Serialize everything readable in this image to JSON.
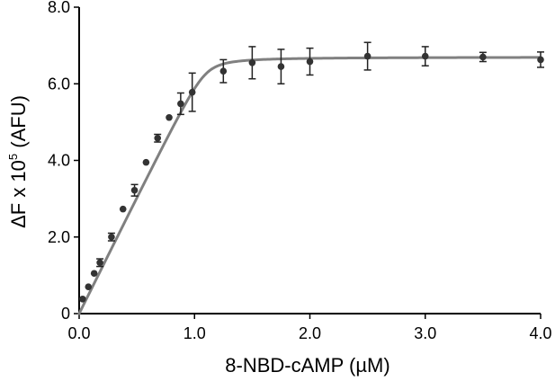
{
  "chart_data": {
    "type": "scatter",
    "xlabel": "8-NBD-cAMP (µM)",
    "ylabel": {
      "prefix": "ΔF x 10",
      "superscript": "5",
      "suffix": " (AFU)"
    },
    "xlim": [
      0,
      4.0
    ],
    "ylim": [
      0,
      8.0
    ],
    "x_ticks": [
      0,
      1.0,
      2.0,
      3.0,
      4.0
    ],
    "x_tick_labels": [
      "0.0",
      "1.0",
      "2.0",
      "3.0",
      "4.0"
    ],
    "y_ticks": [
      0,
      2.0,
      4.0,
      6.0,
      8.0
    ],
    "y_tick_labels": [
      "0",
      "2.0",
      "4.0",
      "6.0",
      "8.0"
    ],
    "grid": false,
    "legend": "none",
    "colors": {
      "points": "#333333",
      "fit_line": "#808080",
      "axis": "#000000"
    },
    "points": [
      {
        "x": 0.03,
        "y": 0.38,
        "err": 0
      },
      {
        "x": 0.08,
        "y": 0.7,
        "err": 0
      },
      {
        "x": 0.13,
        "y": 1.05,
        "err": 0
      },
      {
        "x": 0.18,
        "y": 1.33,
        "err": 0.1
      },
      {
        "x": 0.28,
        "y": 2.0,
        "err": 0.1
      },
      {
        "x": 0.38,
        "y": 2.73,
        "err": 0
      },
      {
        "x": 0.48,
        "y": 3.22,
        "err": 0.15
      },
      {
        "x": 0.58,
        "y": 3.95,
        "err": 0
      },
      {
        "x": 0.68,
        "y": 4.58,
        "err": 0.1
      },
      {
        "x": 0.78,
        "y": 5.12,
        "err": 0
      },
      {
        "x": 0.88,
        "y": 5.48,
        "err": 0.28
      },
      {
        "x": 0.98,
        "y": 5.78,
        "err": 0.5
      },
      {
        "x": 1.25,
        "y": 6.33,
        "err": 0.3
      },
      {
        "x": 1.5,
        "y": 6.55,
        "err": 0.42
      },
      {
        "x": 1.75,
        "y": 6.45,
        "err": 0.45
      },
      {
        "x": 2.0,
        "y": 6.58,
        "err": 0.35
      },
      {
        "x": 2.5,
        "y": 6.72,
        "err": 0.36
      },
      {
        "x": 3.0,
        "y": 6.72,
        "err": 0.25
      },
      {
        "x": 3.5,
        "y": 6.7,
        "err": 0.12
      },
      {
        "x": 4.0,
        "y": 6.63,
        "err": 0.2
      }
    ],
    "fit": {
      "model": "tight_binding",
      "Fmax": 6.7,
      "Kd": 0.005,
      "P": 1.1
    }
  }
}
